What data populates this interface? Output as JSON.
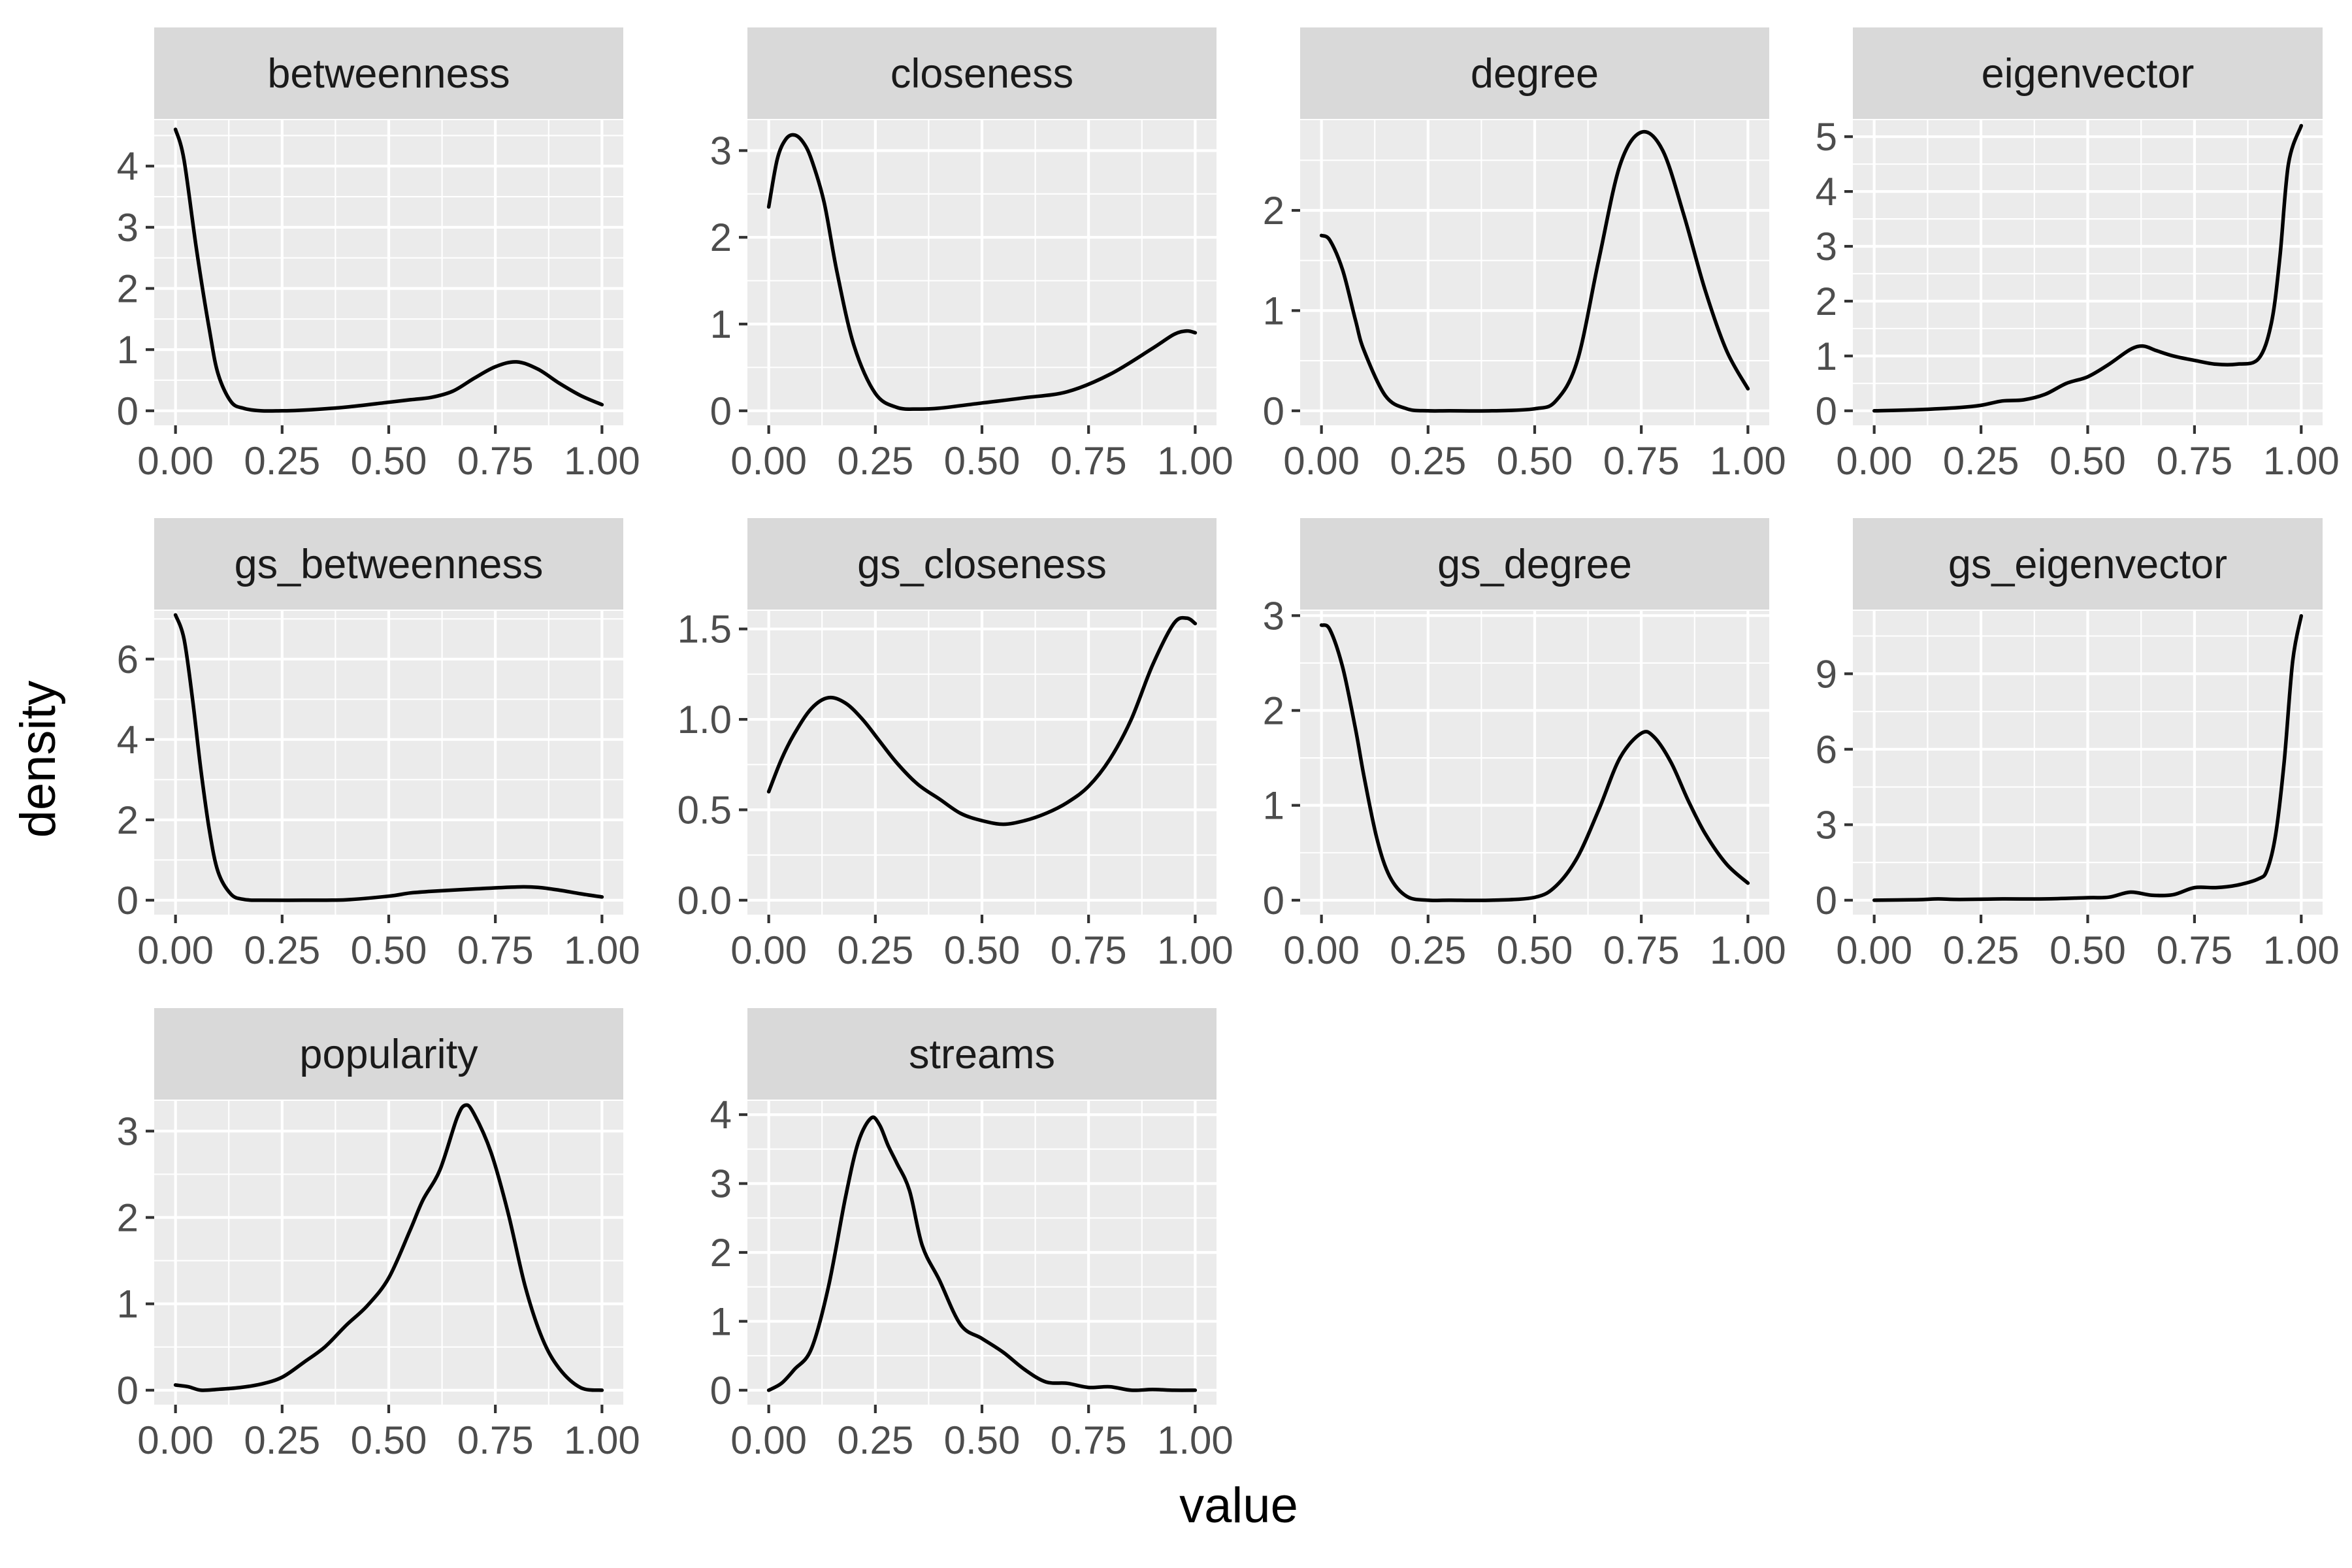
{
  "chart_data": {
    "type": "line",
    "xlabel": "value",
    "ylabel": "density",
    "facets": [
      {
        "name": "betweenness",
        "ylim": [
          0,
          4.75
        ],
        "yticks": [
          0,
          1,
          2,
          3,
          4
        ],
        "x": [
          0.0,
          0.02,
          0.05,
          0.08,
          0.1,
          0.13,
          0.16,
          0.2,
          0.25,
          0.3,
          0.4,
          0.5,
          0.55,
          0.6,
          0.65,
          0.7,
          0.75,
          0.8,
          0.85,
          0.9,
          0.95,
          1.0
        ],
        "y": [
          4.6,
          4.1,
          2.6,
          1.3,
          0.6,
          0.15,
          0.04,
          0.0,
          0.0,
          0.01,
          0.06,
          0.14,
          0.18,
          0.22,
          0.32,
          0.53,
          0.72,
          0.8,
          0.68,
          0.45,
          0.25,
          0.1
        ]
      },
      {
        "name": "closeness",
        "ylim": [
          0,
          3.35
        ],
        "yticks": [
          0,
          1,
          2,
          3
        ],
        "x": [
          0.0,
          0.02,
          0.04,
          0.06,
          0.08,
          0.1,
          0.13,
          0.16,
          0.2,
          0.25,
          0.3,
          0.35,
          0.4,
          0.5,
          0.6,
          0.7,
          0.8,
          0.9,
          0.95,
          0.98,
          1.0
        ],
        "y": [
          2.35,
          2.9,
          3.13,
          3.18,
          3.1,
          2.9,
          2.4,
          1.6,
          0.75,
          0.2,
          0.04,
          0.02,
          0.03,
          0.09,
          0.15,
          0.22,
          0.42,
          0.72,
          0.88,
          0.92,
          0.9
        ],
        "note": ""
      },
      {
        "name": "degree",
        "ylim": [
          0,
          2.9
        ],
        "yticks": [
          0,
          1,
          2
        ],
        "x": [
          0.0,
          0.02,
          0.05,
          0.08,
          0.1,
          0.15,
          0.2,
          0.25,
          0.3,
          0.4,
          0.5,
          0.55,
          0.6,
          0.65,
          0.7,
          0.75,
          0.8,
          0.85,
          0.9,
          0.95,
          1.0
        ],
        "y": [
          1.75,
          1.7,
          1.4,
          0.9,
          0.6,
          0.15,
          0.02,
          0.0,
          0.0,
          0.0,
          0.02,
          0.1,
          0.5,
          1.5,
          2.45,
          2.78,
          2.6,
          1.95,
          1.2,
          0.6,
          0.22
        ]
      },
      {
        "name": "eigenvector",
        "ylim": [
          0,
          5.3
        ],
        "yticks": [
          0,
          1,
          2,
          3,
          4,
          5
        ],
        "x": [
          0.0,
          0.1,
          0.2,
          0.25,
          0.3,
          0.35,
          0.4,
          0.45,
          0.5,
          0.55,
          0.6,
          0.63,
          0.66,
          0.7,
          0.75,
          0.8,
          0.85,
          0.9,
          0.93,
          0.95,
          0.97,
          1.0
        ],
        "y": [
          0.0,
          0.02,
          0.06,
          0.1,
          0.18,
          0.2,
          0.3,
          0.5,
          0.62,
          0.85,
          1.12,
          1.18,
          1.1,
          1.0,
          0.92,
          0.85,
          0.85,
          0.95,
          1.6,
          2.8,
          4.5,
          5.2
        ]
      },
      {
        "name": "gs_betweenness",
        "ylim": [
          0,
          7.2
        ],
        "yticks": [
          0,
          2,
          4,
          6
        ],
        "x": [
          0.0,
          0.02,
          0.04,
          0.06,
          0.08,
          0.1,
          0.13,
          0.16,
          0.2,
          0.3,
          0.4,
          0.5,
          0.55,
          0.6,
          0.7,
          0.8,
          0.85,
          0.9,
          0.95,
          1.0
        ],
        "y": [
          7.1,
          6.5,
          5.0,
          3.2,
          1.7,
          0.7,
          0.15,
          0.02,
          0.0,
          0.0,
          0.01,
          0.1,
          0.18,
          0.22,
          0.28,
          0.33,
          0.32,
          0.25,
          0.16,
          0.08
        ]
      },
      {
        "name": "gs_closeness",
        "ylim": [
          0,
          1.6
        ],
        "yticks": [
          0.0,
          0.5,
          1.0,
          1.5
        ],
        "x": [
          0.0,
          0.03,
          0.06,
          0.1,
          0.14,
          0.18,
          0.22,
          0.26,
          0.3,
          0.35,
          0.4,
          0.45,
          0.5,
          0.55,
          0.6,
          0.65,
          0.7,
          0.75,
          0.8,
          0.85,
          0.9,
          0.95,
          0.98,
          1.0
        ],
        "y": [
          0.6,
          0.78,
          0.92,
          1.06,
          1.12,
          1.09,
          1.0,
          0.88,
          0.76,
          0.64,
          0.56,
          0.48,
          0.44,
          0.42,
          0.44,
          0.48,
          0.54,
          0.63,
          0.78,
          1.0,
          1.3,
          1.53,
          1.56,
          1.53
        ]
      },
      {
        "name": "gs_degree",
        "ylim": [
          0,
          3.05
        ],
        "yticks": [
          0,
          1,
          2,
          3
        ],
        "x": [
          0.0,
          0.02,
          0.05,
          0.08,
          0.1,
          0.13,
          0.16,
          0.2,
          0.25,
          0.3,
          0.4,
          0.5,
          0.55,
          0.6,
          0.65,
          0.7,
          0.75,
          0.78,
          0.82,
          0.86,
          0.9,
          0.95,
          1.0
        ],
        "y": [
          2.9,
          2.85,
          2.45,
          1.8,
          1.3,
          0.65,
          0.25,
          0.04,
          0.0,
          0.0,
          0.0,
          0.03,
          0.15,
          0.45,
          0.95,
          1.5,
          1.76,
          1.72,
          1.45,
          1.05,
          0.7,
          0.38,
          0.18
        ]
      },
      {
        "name": "gs_eigenvector",
        "ylim": [
          0,
          11.5
        ],
        "yticks": [
          0,
          3,
          6,
          9
        ],
        "x": [
          0.0,
          0.1,
          0.15,
          0.2,
          0.3,
          0.4,
          0.5,
          0.55,
          0.6,
          0.65,
          0.7,
          0.75,
          0.8,
          0.85,
          0.9,
          0.92,
          0.94,
          0.96,
          0.98,
          1.0
        ],
        "y": [
          0.0,
          0.02,
          0.05,
          0.03,
          0.05,
          0.05,
          0.1,
          0.12,
          0.32,
          0.2,
          0.22,
          0.5,
          0.5,
          0.6,
          0.85,
          1.2,
          2.6,
          5.5,
          9.5,
          11.3
        ]
      },
      {
        "name": "popularity",
        "ylim": [
          0,
          3.35
        ],
        "yticks": [
          0,
          1,
          2,
          3
        ],
        "x": [
          0.0,
          0.03,
          0.06,
          0.1,
          0.15,
          0.2,
          0.25,
          0.3,
          0.35,
          0.4,
          0.45,
          0.5,
          0.55,
          0.58,
          0.62,
          0.66,
          0.68,
          0.7,
          0.74,
          0.78,
          0.82,
          0.86,
          0.9,
          0.95,
          1.0
        ],
        "y": [
          0.06,
          0.04,
          0.0,
          0.01,
          0.03,
          0.07,
          0.15,
          0.32,
          0.5,
          0.75,
          0.98,
          1.3,
          1.85,
          2.2,
          2.55,
          3.15,
          3.3,
          3.2,
          2.75,
          2.05,
          1.2,
          0.6,
          0.25,
          0.03,
          0.0
        ]
      },
      {
        "name": "streams",
        "ylim": [
          0,
          4.2
        ],
        "yticks": [
          0,
          1,
          2,
          3,
          4
        ],
        "x": [
          0.0,
          0.03,
          0.06,
          0.1,
          0.14,
          0.18,
          0.21,
          0.24,
          0.26,
          0.28,
          0.3,
          0.33,
          0.36,
          0.4,
          0.45,
          0.5,
          0.55,
          0.6,
          0.65,
          0.7,
          0.75,
          0.8,
          0.85,
          0.9,
          0.95,
          1.0
        ],
        "y": [
          0.0,
          0.1,
          0.3,
          0.6,
          1.5,
          2.8,
          3.6,
          3.95,
          3.85,
          3.55,
          3.3,
          2.9,
          2.1,
          1.6,
          0.95,
          0.75,
          0.55,
          0.3,
          0.12,
          0.1,
          0.04,
          0.05,
          0.0,
          0.01,
          0.0,
          0.0
        ]
      }
    ],
    "xlim": [
      -0.05,
      1.05
    ],
    "xticks": [
      0.0,
      0.25,
      0.5,
      0.75,
      1.0
    ],
    "xtick_labels": [
      "0.00",
      "0.25",
      "0.50",
      "0.75",
      "1.00"
    ],
    "grid": true,
    "legend": "none"
  }
}
